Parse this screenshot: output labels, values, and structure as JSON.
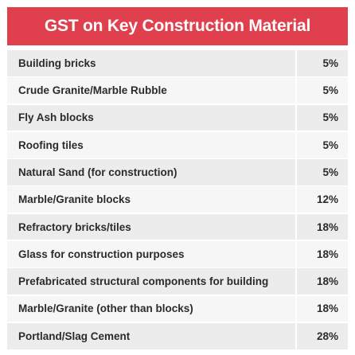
{
  "title": "GST on Key Construction Material",
  "rows": [
    {
      "material": "Building bricks",
      "rate": "5%"
    },
    {
      "material": "Crude Granite/Marble Rubble",
      "rate": "5%"
    },
    {
      "material": "Fly Ash blocks",
      "rate": "5%"
    },
    {
      "material": "Roofing tiles",
      "rate": "5%"
    },
    {
      "material": "Natural Sand (for construction)",
      "rate": "5%"
    },
    {
      "material": "Marble/Granite blocks",
      "rate": "12%"
    },
    {
      "material": "Refractory bricks/tiles",
      "rate": "18%"
    },
    {
      "material": "Glass for construction purposes",
      "rate": "18%"
    },
    {
      "material": "Prefabricated structural components for building",
      "rate": "18%"
    },
    {
      "material": "Marble/Granite (other than blocks)",
      "rate": "18%"
    },
    {
      "material": "Portland/Slag Cement",
      "rate": "28%"
    }
  ],
  "colors": {
    "header_bg": "#e0404d",
    "header_text": "#ffffff",
    "row_odd": "#ececec",
    "row_even": "#f6f6f6",
    "text": "#2b2b2b"
  }
}
